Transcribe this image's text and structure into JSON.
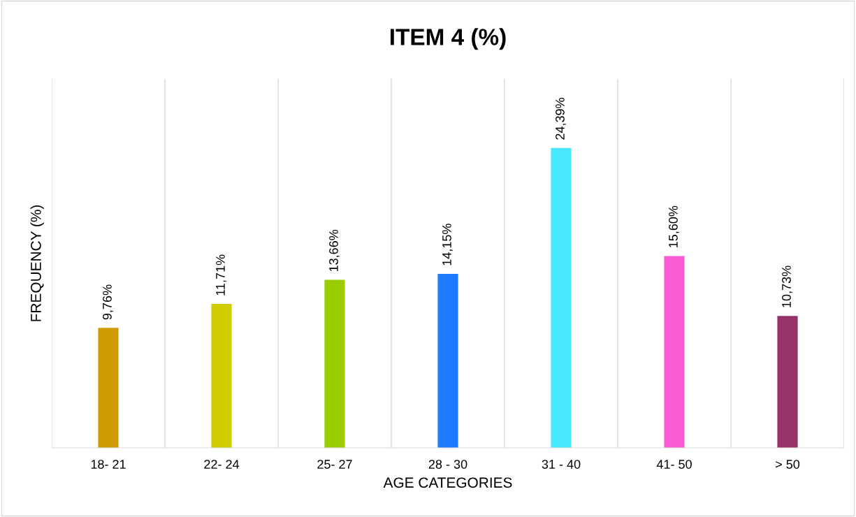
{
  "chart_data": {
    "type": "bar",
    "title": "ITEM 4 (%)",
    "xlabel": "AGE CATEGORIES",
    "ylabel": "FREQUENCY (%)",
    "categories": [
      "18- 21",
      "22- 24",
      "25- 27",
      "28 - 30",
      "31 - 40",
      "41- 50",
      "> 50"
    ],
    "values": [
      9.76,
      11.71,
      13.66,
      14.15,
      24.39,
      15.6,
      10.73
    ],
    "colors": [
      "#d09b00",
      "#cfcd00",
      "#9acd00",
      "#1e7aff",
      "#4ae8fc",
      "#f95bd0",
      "#973366"
    ],
    "value_labels": [
      "9,76%",
      "11,71%",
      "13,66%",
      "14,15%",
      "24,39%",
      "15,60%",
      "10,73%"
    ],
    "ylim": [
      0,
      30
    ],
    "grid": "x",
    "tick_labels": "x"
  }
}
